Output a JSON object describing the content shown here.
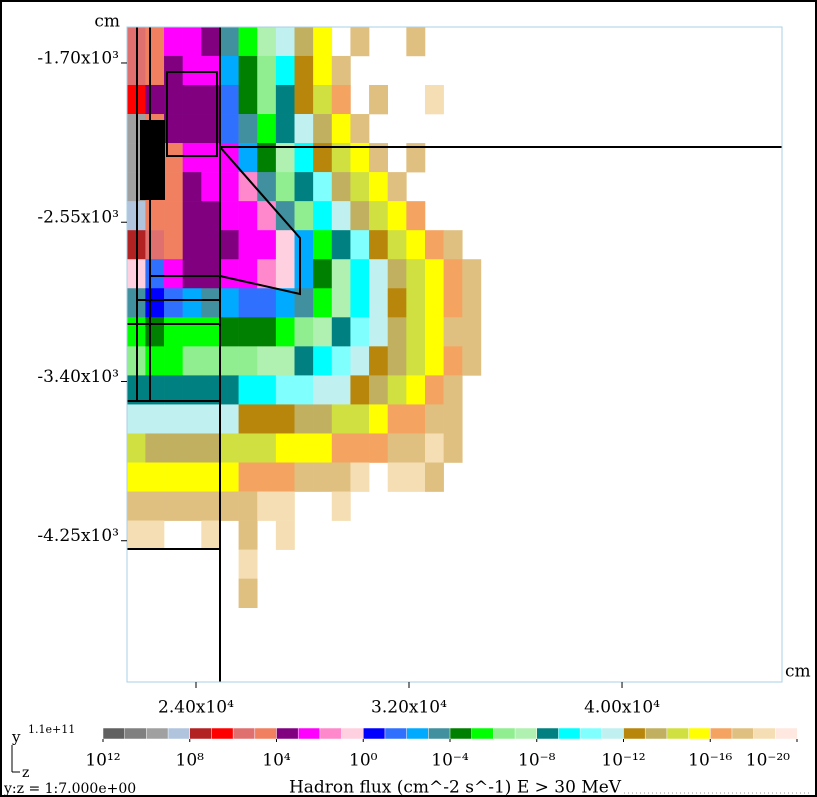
{
  "chart_data": {
    "type": "heatmap",
    "title": "Hadron flux (cm^-2 s^-1) E > 30 MeV",
    "aspect_label": "y:z = 1:7.000e+00",
    "xlabel": "z",
    "ylabel": "y",
    "x_unit": "cm",
    "y_unit": "cm",
    "xlim": [
      21409,
      46008
    ],
    "ylim": [
      -5004,
      -1508
    ],
    "xticks": [
      {
        "value": 24000,
        "label": "2.40x10⁴"
      },
      {
        "value": 32000,
        "label": "3.20x10⁴"
      },
      {
        "value": 40000,
        "label": "4.00x10⁴"
      }
    ],
    "yticks": [
      {
        "value": -1700,
        "label": "-1.70x10³"
      },
      {
        "value": -2550,
        "label": "-2.55x10³"
      },
      {
        "value": -3400,
        "label": "-3.40x10³"
      },
      {
        "value": -4250,
        "label": "-4.25x10³"
      }
    ],
    "x": [
      21750,
      22450,
      23150,
      23850,
      24550,
      25250,
      25950,
      26650,
      27350,
      28050,
      28750,
      29450,
      30150,
      30850,
      31550,
      32250,
      32950,
      33650,
      34350,
      35050
    ],
    "y": [
      -1585,
      -1740,
      -1895,
      -2050,
      -2205,
      -2360,
      -2515,
      -2670,
      -2825,
      -2980,
      -3135,
      -3290,
      -3445,
      -3600,
      -3755,
      -3910,
      -4065,
      -4220,
      -4375,
      -4530
    ],
    "values": [
      [
        500000.0,
        50000.0,
        500.0,
        500.0,
        5000.0,
        0.0005,
        5e-06,
        5e-08,
        5e-12,
        5e-14,
        5e-16,
        null,
        5e-18,
        null,
        null,
        5e-18,
        null,
        null,
        null,
        null
      ],
      [
        500000.0,
        50000.0,
        5000.0,
        500.0,
        500.0,
        0.005,
        5e-05,
        5e-07,
        5e-10,
        5e-13,
        5e-16,
        5e-18,
        null,
        null,
        null,
        null,
        null,
        null,
        null,
        null
      ],
      [
        5000000.0,
        5000.0,
        5000.0,
        5000.0,
        5000.0,
        0.05,
        5e-05,
        5e-07,
        5e-09,
        5e-13,
        5e-15,
        5e-17,
        null,
        5e-18,
        null,
        null,
        5e-19,
        null,
        null,
        null
      ],
      [
        5000000000.0,
        50000.0,
        5000.0,
        5000.0,
        5000.0,
        0.05,
        0.0005,
        5e-06,
        5e-09,
        5e-12,
        5e-14,
        5e-16,
        5e-18,
        null,
        null,
        null,
        null,
        null,
        null,
        null
      ],
      [
        5000000000.0,
        50000.0,
        50000.0,
        500.0,
        500.0,
        500.0,
        0.005,
        5e-05,
        5e-08,
        5e-10,
        5e-13,
        5e-15,
        5e-16,
        5e-18,
        null,
        5e-18,
        null,
        null,
        null,
        null
      ],
      [
        5000000000.0,
        50000.0,
        50000.0,
        5000.0,
        500.0,
        500.0,
        50.0,
        0.0005,
        5e-07,
        5e-09,
        5e-11,
        5e-14,
        5e-15,
        5e-16,
        5e-18,
        null,
        null,
        null,
        null,
        null
      ],
      [
        500000000.0,
        50000.0,
        50000.0,
        5000.0,
        5000.0,
        500.0,
        500.0,
        50.0,
        0.0005,
        5e-07,
        5e-10,
        5e-12,
        5e-14,
        5e-15,
        5e-16,
        5e-17,
        null,
        null,
        null,
        null
      ],
      [
        50000000.0,
        500000.0,
        50000.0,
        5000.0,
        5000.0,
        5000.0,
        500.0,
        500.0,
        5.0,
        0.005,
        5e-06,
        5e-09,
        5e-11,
        5e-13,
        5e-15,
        5e-16,
        5e-17,
        5e-18,
        null,
        null
      ],
      [
        5.0,
        0.05,
        500.0,
        5000.0,
        5000.0,
        500.0,
        500.0,
        50.0,
        5.0,
        0.005,
        5e-05,
        5e-08,
        5e-10,
        5e-12,
        5e-14,
        5e-15,
        5e-16,
        5e-17,
        5e-18,
        null
      ],
      [
        0.0005,
        0.5,
        0.05,
        0.005,
        0.0005,
        0.005,
        0.05,
        0.05,
        0.005,
        0.0005,
        5e-06,
        5e-08,
        5e-10,
        5e-12,
        5e-13,
        5e-15,
        5e-16,
        5e-17,
        5e-18,
        null
      ],
      [
        5e-06,
        5e-05,
        5e-06,
        5e-06,
        5e-06,
        5e-05,
        5e-05,
        5e-05,
        5e-06,
        5e-07,
        5e-08,
        5e-09,
        5e-11,
        5e-12,
        5e-14,
        5e-15,
        5e-16,
        5e-18,
        5e-18,
        null
      ],
      [
        5e-07,
        5e-06,
        5e-06,
        5e-07,
        5e-07,
        5e-07,
        5e-07,
        5e-08,
        5e-08,
        5e-09,
        5e-10,
        5e-11,
        5e-12,
        5e-13,
        5e-14,
        5e-15,
        5e-16,
        5e-17,
        5e-18,
        null
      ],
      [
        5e-09,
        5e-09,
        5e-09,
        5e-09,
        5e-09,
        5e-09,
        5e-10,
        5e-10,
        5e-11,
        5e-11,
        5e-12,
        5e-12,
        5e-13,
        5e-14,
        5e-15,
        5e-16,
        5e-17,
        5e-18,
        null,
        null
      ],
      [
        5e-12,
        5e-12,
        5e-12,
        5e-12,
        5e-12,
        5e-12,
        5e-13,
        5e-13,
        5e-13,
        5e-14,
        5e-14,
        5e-15,
        5e-15,
        5e-16,
        5e-17,
        5e-17,
        5e-18,
        5e-18,
        null,
        null
      ],
      [
        5e-15,
        5e-14,
        5e-14,
        5e-14,
        5e-14,
        5e-15,
        5e-15,
        5e-15,
        5e-16,
        5e-16,
        5e-16,
        5e-17,
        5e-17,
        5e-17,
        5e-18,
        5e-18,
        5e-19,
        5e-18,
        null,
        null
      ],
      [
        5e-16,
        5e-16,
        5e-16,
        5e-16,
        5e-16,
        5e-16,
        5e-17,
        5e-17,
        5e-17,
        5e-18,
        5e-18,
        5e-18,
        5e-19,
        null,
        5e-19,
        5e-19,
        5e-18,
        null,
        null,
        null
      ],
      [
        5e-18,
        5e-18,
        5e-18,
        5e-18,
        5e-18,
        5e-18,
        5e-18,
        5e-19,
        5e-19,
        null,
        null,
        5e-19,
        null,
        null,
        null,
        null,
        null,
        null,
        null,
        null
      ],
      [
        5e-19,
        5e-19,
        null,
        null,
        5e-19,
        null,
        5e-18,
        null,
        5e-19,
        null,
        null,
        null,
        null,
        null,
        null,
        null,
        null,
        null,
        null,
        null
      ],
      [
        null,
        null,
        null,
        null,
        null,
        null,
        5e-19,
        null,
        null,
        null,
        null,
        null,
        null,
        null,
        null,
        null,
        null,
        null,
        null,
        null
      ],
      [
        null,
        null,
        null,
        null,
        null,
        null,
        5e-18,
        null,
        null,
        null,
        null,
        null,
        null,
        null,
        null,
        null,
        null,
        null,
        null,
        null
      ]
    ],
    "colorbar": {
      "log": true,
      "lim": [
        1000000000000.0,
        1e-20
      ],
      "max": {
        "value": 110000000000.0,
        "label": "1.1e+11"
      },
      "colors": [
        "#606060",
        "#808080",
        "#a0a0a0",
        "#b0c4de",
        "#b22222",
        "#ff0000",
        "#e07070",
        "#f08060",
        "#800080",
        "#ff00ff",
        "#ff88cc",
        "#ffd0e0",
        "#0000ff",
        "#3070ff",
        "#00aaff",
        "#4090a0",
        "#008000",
        "#00ff00",
        "#90ee90",
        "#b0f0b0",
        "#008080",
        "#00ffff",
        "#80ffff",
        "#c0f0f0",
        "#b8860b",
        "#c0b060",
        "#d0e040",
        "#ffff00",
        "#f4a460",
        "#e0c080",
        "#f5deb3",
        "#ffe8e0"
      ],
      "ticks": [
        {
          "value": 1000000000000.0,
          "label": "10¹²"
        },
        {
          "value": 100000000.0,
          "label": "10⁸"
        },
        {
          "value": 10000.0,
          "label": "10⁴"
        },
        {
          "value": 1.0,
          "label": "10⁰"
        },
        {
          "value": 0.0001,
          "label": "10⁻⁴"
        },
        {
          "value": 1e-08,
          "label": "10⁻⁸"
        },
        {
          "value": 1e-12,
          "label": "10⁻¹²"
        },
        {
          "value": 1e-16,
          "label": "10⁻¹⁶"
        },
        {
          "value": 1e-20,
          "label": "10⁻²⁰"
        }
      ]
    }
  }
}
